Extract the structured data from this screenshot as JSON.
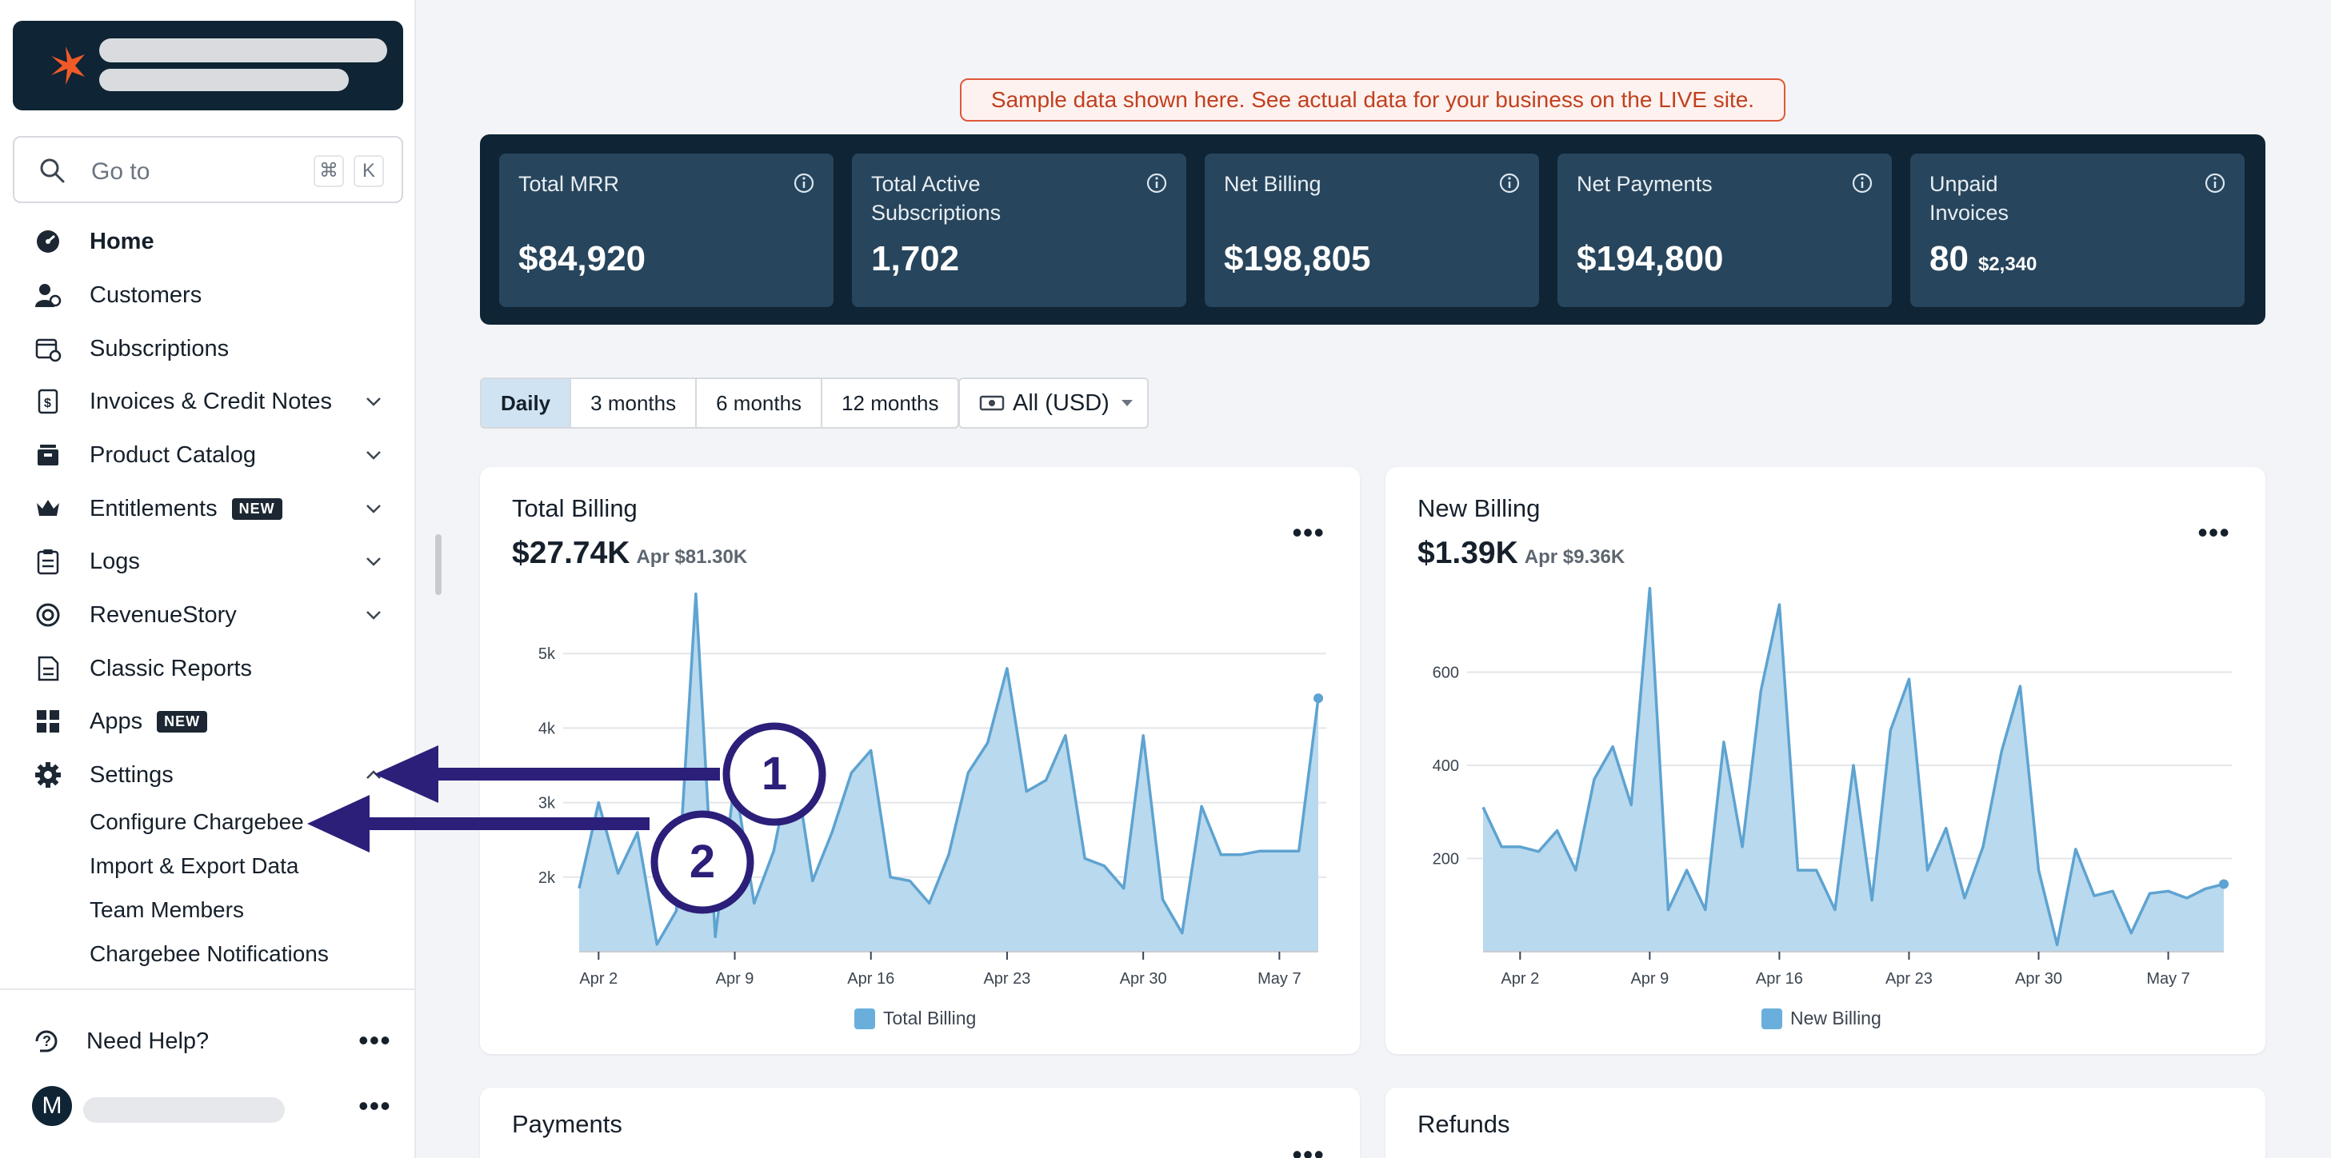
{
  "sidebar": {
    "search": {
      "placeholder": "Go to",
      "shortcut_symbol": "⌘",
      "shortcut_key": "K"
    },
    "items": [
      {
        "label": "Home",
        "icon": "dashboard-icon"
      },
      {
        "label": "Customers",
        "icon": "customers-icon"
      },
      {
        "label": "Subscriptions",
        "icon": "subscriptions-icon"
      },
      {
        "label": "Invoices & Credit Notes",
        "icon": "invoice-icon"
      },
      {
        "label": "Product Catalog",
        "icon": "catalog-icon"
      },
      {
        "label": "Entitlements",
        "icon": "crown-icon",
        "badge": "NEW"
      },
      {
        "label": "Logs",
        "icon": "clipboard-icon"
      },
      {
        "label": "RevenueStory",
        "icon": "revenue-icon"
      },
      {
        "label": "Classic Reports",
        "icon": "report-icon"
      },
      {
        "label": "Apps",
        "icon": "apps-grid-icon",
        "badge": "NEW"
      },
      {
        "label": "Settings",
        "icon": "gear-icon"
      }
    ],
    "settings_sub": [
      "Configure Chargebee",
      "Import & Export Data",
      "Team Members",
      "Chargebee Notifications"
    ],
    "help": "Need Help?",
    "avatar_initial": "M"
  },
  "banner": "Sample data shown here. See actual data for your business on the LIVE site.",
  "kpis": [
    {
      "title": "Total MRR",
      "value": "$84,920"
    },
    {
      "title": "Total Active Subscriptions",
      "value": "1,702"
    },
    {
      "title": "Net Billing",
      "value": "$198,805"
    },
    {
      "title": "Net Payments",
      "value": "$194,800"
    },
    {
      "title": "Unpaid Invoices",
      "value": "80",
      "secondary": "$2,340"
    }
  ],
  "filters": {
    "ranges": [
      "Daily",
      "3 months",
      "6 months",
      "12 months"
    ],
    "active_range": "Daily",
    "currency": "All (USD)"
  },
  "cards": {
    "total_billing": {
      "title": "Total Billing",
      "value": "$27.74K",
      "sub": "Apr $81.30K"
    },
    "new_billing": {
      "title": "New Billing",
      "value": "$1.39K",
      "sub": "Apr $9.36K"
    },
    "payments": {
      "title": "Payments"
    },
    "refunds": {
      "title": "Refunds"
    }
  },
  "annotations": [
    "1",
    "2"
  ],
  "colors": {
    "accent_fill": "#b9d9ee",
    "accent_line": "#5ea3d1",
    "navy": "#0f2434",
    "kpi_bg": "#27455c",
    "annotation": "#2b1f7a"
  },
  "chart_data": [
    {
      "type": "area",
      "title": "Total Billing",
      "series": [
        {
          "name": "Total Billing",
          "values": [
            1850,
            3000,
            2050,
            2600,
            1100,
            1550,
            5800,
            1200,
            3300,
            1650,
            2350,
            3650,
            1950,
            2600,
            3400,
            3700,
            2000,
            1950,
            1650,
            2300,
            3400,
            3800,
            4800,
            3150,
            3300,
            3900,
            2250,
            2150,
            1850,
            3900,
            1700,
            1250,
            2950,
            2300,
            2300,
            2350,
            2350,
            2350,
            4400
          ]
        }
      ],
      "x_start": "Apr 1",
      "x_ticks": [
        "Apr 2",
        "Apr 9",
        "Apr 16",
        "Apr 23",
        "Apr 30",
        "May 7"
      ],
      "y_ticks": [
        "2k",
        "3k",
        "4k",
        "5k"
      ],
      "ylim": [
        1000,
        6000
      ]
    },
    {
      "type": "area",
      "title": "New Billing",
      "series": [
        {
          "name": "New Billing",
          "values": [
            310,
            225,
            225,
            215,
            260,
            175,
            370,
            440,
            315,
            780,
            90,
            175,
            90,
            450,
            225,
            560,
            745,
            175,
            175,
            90,
            400,
            110,
            475,
            585,
            175,
            265,
            115,
            225,
            430,
            570,
            175,
            15,
            220,
            120,
            130,
            40,
            125,
            130,
            115,
            135,
            145
          ]
        }
      ],
      "x_start": "Mar 31",
      "x_ticks": [
        "Apr 2",
        "Apr 9",
        "Apr 16",
        "Apr 23",
        "Apr 30",
        "May 7"
      ],
      "y_ticks": [
        "200",
        "400",
        "600"
      ],
      "ylim": [
        0,
        800
      ]
    }
  ]
}
